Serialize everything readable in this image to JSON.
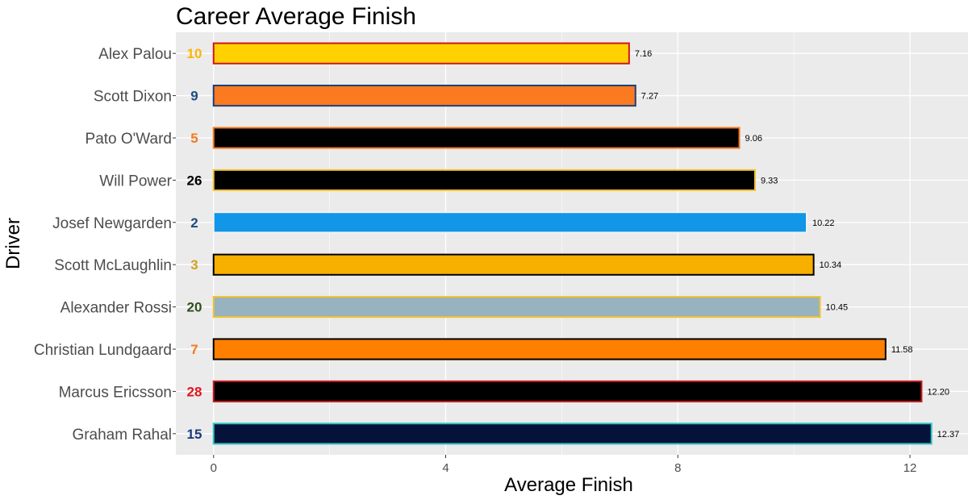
{
  "chart_data": {
    "type": "bar",
    "orientation": "horizontal",
    "title": "Career Average Finish",
    "xlabel": "Average Finish",
    "ylabel": "Driver",
    "xlim": [
      -0.65,
      13.0
    ],
    "xticks": [
      0,
      4,
      8,
      12
    ],
    "tick_labels": [
      "0",
      "4",
      "8",
      "12"
    ],
    "grid": true,
    "legend": "none",
    "categories": [
      "Alex Palou",
      "Scott Dixon",
      "Pato O'Ward",
      "Will Power",
      "Josef Newgarden",
      "Scott McLaughlin",
      "Alexander Rossi",
      "Christian Lundgaard",
      "Marcus Ericsson",
      "Graham Rahal"
    ],
    "values": [
      7.16,
      7.27,
      9.06,
      9.33,
      10.22,
      10.34,
      10.45,
      11.58,
      12.2,
      12.37
    ],
    "value_labels": [
      "7.16",
      "7.27",
      "9.06",
      "9.33",
      "10.22",
      "10.34",
      "10.45",
      "11.58",
      "12.20",
      "12.37"
    ],
    "car_numbers": [
      "10",
      "9",
      "5",
      "26",
      "2",
      "3",
      "20",
      "7",
      "28",
      "15"
    ],
    "fill_colors": [
      "#FFD100",
      "#FA7921",
      "#000000",
      "#000000",
      "#1196E8",
      "#F7AF00",
      "#97B3C0",
      "#FF7F00",
      "#000000",
      "#05123A"
    ],
    "outline_colors": [
      "#D0171D",
      "#1C3F7A",
      "#F47A20",
      "#F2C230",
      "#F2F2F2",
      "#000000",
      "#F2C230",
      "#000000",
      "#C41E24",
      "#2EC4C4"
    ],
    "number_colors": [
      "#FFB400",
      "#1C4B82",
      "#F47A20",
      "#000000",
      "#1C4B82",
      "#D4A020",
      "#2F4F1F",
      "#F47A20",
      "#E0161F",
      "#1C3A7A"
    ],
    "panel_background": "#EBEBEB",
    "grid_color": "#FFFFFF"
  }
}
